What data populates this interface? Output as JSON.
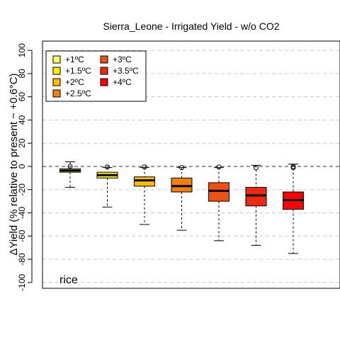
{
  "chart_data": {
    "type": "box",
    "title": "Sierra_Leone - Irrigated Yield - w/o CO2",
    "ylabel": "ΔYield (% relative to present ~ +0.6°C)",
    "ylim": [
      -105,
      108
    ],
    "yticks": [
      -100,
      -80,
      -60,
      -40,
      -20,
      0,
      20,
      40,
      60,
      80,
      100
    ],
    "grid": true,
    "legend_position": "top-left",
    "annotation": "rice",
    "series": [
      {
        "name": "+1ºC",
        "color": "#FFFF66",
        "whisker_low": -18,
        "q1": -5,
        "median": -3.5,
        "q3": -2,
        "whisker_high": 4,
        "outliers": [
          0
        ]
      },
      {
        "name": "+1.5ºC",
        "color": "#FFEE00",
        "whisker_low": -35,
        "q1": -10,
        "median": -7.5,
        "q3": -5,
        "whisker_high": -1,
        "outliers": [
          -0.5
        ]
      },
      {
        "name": "+2ºC",
        "color": "#FFBB00",
        "whisker_low": -50,
        "q1": -17,
        "median": -12,
        "q3": -9,
        "whisker_high": -1,
        "outliers": [
          -0.5
        ]
      },
      {
        "name": "+2.5ºC",
        "color": "#F08010",
        "whisker_low": -55,
        "q1": -22,
        "median": -17,
        "q3": -10,
        "whisker_high": -1,
        "outliers": [
          -1
        ]
      },
      {
        "name": "+3ºC",
        "color": "#F05010",
        "whisker_low": -64,
        "q1": -30,
        "median": -21,
        "q3": -14,
        "whisker_high": -1,
        "outliers": [
          -0.5
        ]
      },
      {
        "name": "+3.5ºC",
        "color": "#F02810",
        "whisker_low": -68,
        "q1": -34,
        "median": -25,
        "q3": -18,
        "whisker_high": 1,
        "outliers": [
          -1
        ]
      },
      {
        "name": "+4ºC",
        "color": "#FF0000",
        "whisker_low": -75,
        "q1": -37,
        "median": -29,
        "q3": -22,
        "whisker_high": 2,
        "outliers": [
          -1,
          0
        ]
      }
    ]
  }
}
